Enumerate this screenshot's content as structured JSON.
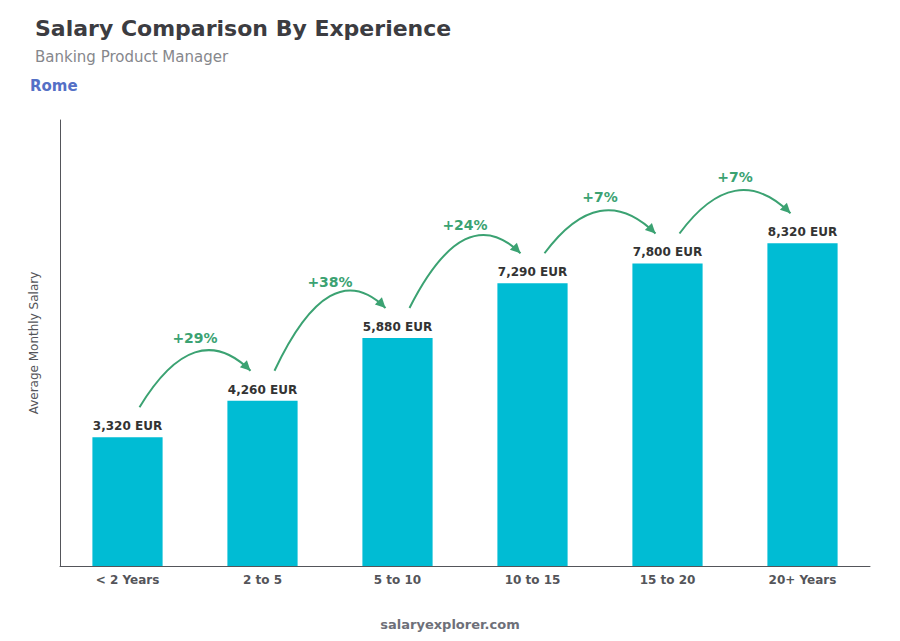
{
  "chart_data": {
    "type": "bar",
    "title": "Salary Comparison By Experience",
    "subtitle": "Banking Product Manager",
    "annotations": [
      "Rome",
      "salaryexplorer.com"
    ],
    "ylabel": "Average Monthly Salary",
    "categories": [
      "< 2 Years",
      "2 to 5",
      "5 to 10",
      "10 to 15",
      "15 to 20",
      "20+ Years"
    ],
    "values": [
      3320,
      4260,
      5880,
      7290,
      7800,
      8320
    ],
    "value_labels": [
      "3,320 EUR",
      "4,260 EUR",
      "5,880 EUR",
      "7,290 EUR",
      "7,800 EUR",
      "8,320 EUR"
    ],
    "data_labels": true,
    "change_labels": [
      "+29%",
      "+38%",
      "+24%",
      "+7%",
      "+7%"
    ],
    "color": "#00bcd4",
    "ylim": [
      0,
      11500
    ],
    "grid": false,
    "tick_labels": "x"
  }
}
